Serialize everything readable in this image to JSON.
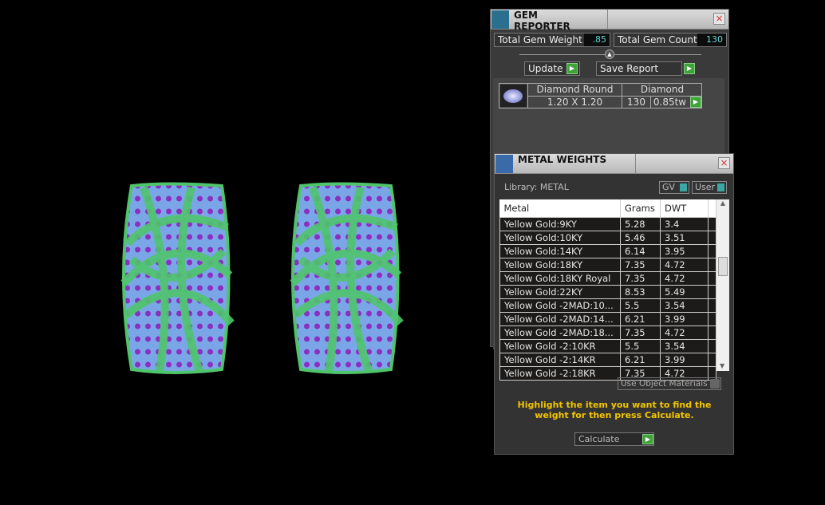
{
  "gem_reporter": {
    "title": "GEM REPORTER",
    "close": "×",
    "total_weight_label": "Total Gem Weight",
    "total_weight": ".85",
    "total_count_label": "Total Gem Count",
    "total_count": "130",
    "update": "Update",
    "save_report": "Save Report",
    "gem": {
      "name": "Diamond Round",
      "size": "1.20 X 1.20",
      "type": "Diamond",
      "count": "130",
      "weight": "0.85tw"
    }
  },
  "metal_weights": {
    "title": "METAL WEIGHTS",
    "close": "×",
    "library": "Library: METAL",
    "gv": "GV",
    "user": "User",
    "columns": [
      "Metal",
      "Grams",
      "DWT"
    ],
    "rows": [
      [
        "Yellow Gold:9KY",
        "5.28",
        "3.4"
      ],
      [
        "Yellow Gold:10KY",
        "5.46",
        "3.51"
      ],
      [
        "Yellow Gold:14KY",
        "6.14",
        "3.95"
      ],
      [
        "Yellow Gold:18KY",
        "7.35",
        "4.72"
      ],
      [
        "Yellow Gold:18KY Royal",
        "7.35",
        "4.72"
      ],
      [
        "Yellow Gold:22KY",
        "8.53",
        "5.49"
      ],
      [
        "Yellow Gold -2MAD:10...",
        "5.5",
        "3.54"
      ],
      [
        "Yellow Gold -2MAD:14...",
        "6.21",
        "3.99"
      ],
      [
        "Yellow Gold -2MAD:18...",
        "7.35",
        "4.72"
      ],
      [
        "Yellow Gold -2:10KR",
        "5.5",
        "3.54"
      ],
      [
        "Yellow Gold -2:14KR",
        "6.21",
        "3.99"
      ],
      [
        "Yellow Gold -2:18KR",
        "7.35",
        "4.72"
      ]
    ],
    "use_object_materials": "Use Object Materials",
    "hint": "Highlight the item you want to find the weight for then press Calculate.",
    "calculate": "Calculate"
  },
  "colors": {
    "metal": "#4fc46a",
    "stone": "#7aa6e8",
    "prong": "#8a2fc0",
    "hint": "#f2c500",
    "value": "#5fd4d4"
  }
}
